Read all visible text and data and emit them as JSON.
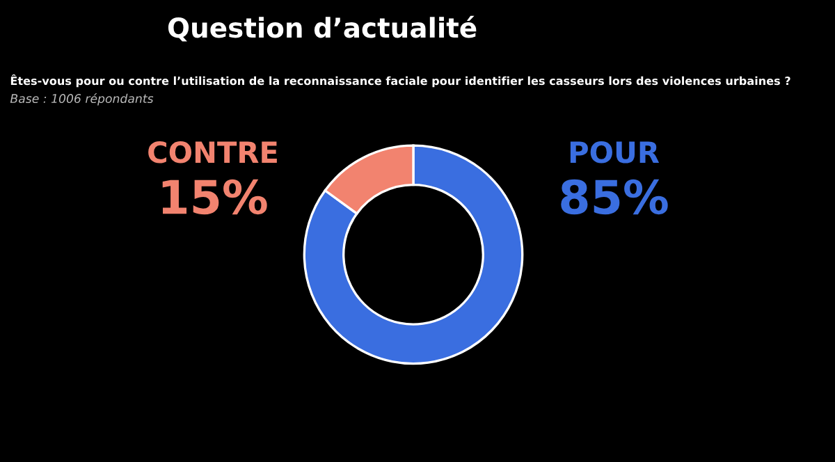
{
  "chart_data": {
    "type": "donut",
    "title": "Question d’actualité",
    "subtitle": "Êtes-vous pour ou contre l’utilisation de la reconnaissance faciale pour identifier les casseurs lors des violences urbaines ?",
    "annotations": [
      "Base : 1006 répondants"
    ],
    "categories": [
      "POUR",
      "CONTRE"
    ],
    "values": [
      85,
      15
    ],
    "colors": [
      "#3a6ee0",
      "#f2836f"
    ],
    "value_labels": [
      "85%",
      "15%"
    ],
    "legend": false
  }
}
